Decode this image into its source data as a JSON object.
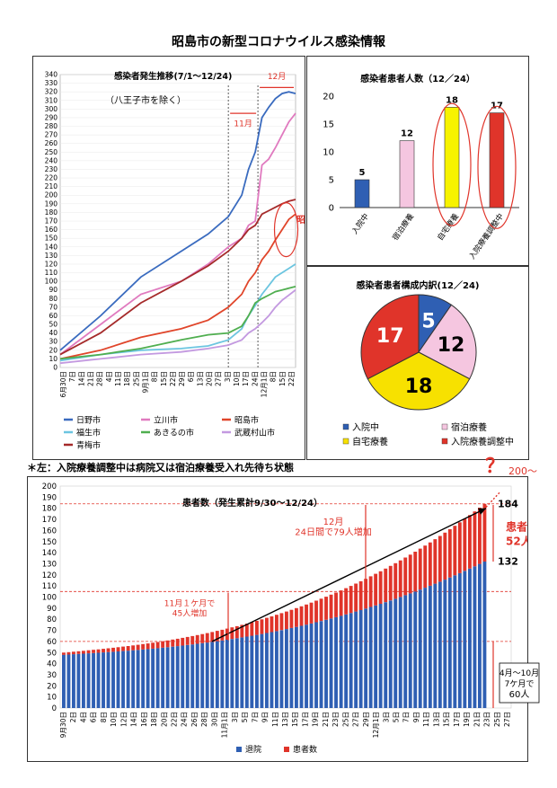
{
  "page": {
    "title": "昭島市の新型コロナウイルス感染情報",
    "note": "＊左：入院療養調整中は病院又は宿泊療養受入れ先待ち状態"
  },
  "chart_data": [
    {
      "id": "line_chart",
      "type": "line",
      "title": "感染者発生推移(7/1～12/24)",
      "subtitle": "（八王子市を除く）",
      "ylim": [
        0,
        340
      ],
      "y_ticks": [
        0,
        10,
        20,
        30,
        40,
        50,
        60,
        70,
        80,
        90,
        100,
        110,
        120,
        130,
        140,
        150,
        160,
        170,
        180,
        190,
        200,
        210,
        220,
        230,
        240,
        250,
        260,
        270,
        280,
        290,
        300,
        310,
        320,
        330,
        340
      ],
      "x_tick_labels": [
        "6月30日",
        "7日",
        "14日",
        "21日",
        "28日",
        "4日",
        "11日",
        "18日",
        "25日",
        "9月1日",
        "8日",
        "15日",
        "22日",
        "29日",
        "6日",
        "13日",
        "20日",
        "27日",
        "3日",
        "10日",
        "17日",
        "24日",
        "12月1日",
        "8日",
        "15日",
        "22日"
      ],
      "annotations": {
        "nov": "11月",
        "dec": "12月",
        "akishima": "昭島市"
      },
      "legend_position": "bottom",
      "series": [
        {
          "name": "日野市",
          "color": "#3a6bbf",
          "x": [
            0,
            30,
            60,
            90,
            110,
            125,
            135,
            140,
            145,
            150,
            155,
            160,
            165,
            170,
            175
          ],
          "y": [
            20,
            60,
            105,
            135,
            155,
            175,
            200,
            230,
            250,
            290,
            302,
            312,
            318,
            320,
            318
          ]
        },
        {
          "name": "立川市",
          "color": "#e07abf",
          "x": [
            0,
            30,
            60,
            90,
            110,
            125,
            135,
            140,
            145,
            150,
            155,
            160,
            165,
            170,
            175
          ],
          "y": [
            15,
            50,
            85,
            100,
            120,
            140,
            150,
            165,
            170,
            235,
            242,
            255,
            270,
            285,
            295
          ]
        },
        {
          "name": "昭島市",
          "color": "#e0452a",
          "x": [
            0,
            30,
            60,
            90,
            110,
            125,
            135,
            140,
            145,
            150,
            155,
            160,
            165,
            170,
            175
          ],
          "y": [
            10,
            20,
            35,
            45,
            55,
            70,
            85,
            100,
            110,
            125,
            135,
            148,
            160,
            172,
            178
          ]
        },
        {
          "name": "福生市",
          "color": "#6cc5e0",
          "x": [
            0,
            30,
            60,
            90,
            110,
            125,
            135,
            140,
            145,
            150,
            155,
            160,
            165,
            170,
            175
          ],
          "y": [
            8,
            15,
            20,
            22,
            25,
            32,
            45,
            60,
            72,
            85,
            95,
            105,
            110,
            115,
            120
          ]
        },
        {
          "name": "あきるの市",
          "color": "#4fae4f",
          "x": [
            0,
            30,
            60,
            90,
            110,
            125,
            135,
            140,
            145,
            150,
            155,
            160,
            165,
            170,
            175
          ],
          "y": [
            10,
            15,
            22,
            32,
            38,
            40,
            48,
            60,
            75,
            80,
            84,
            88,
            90,
            92,
            94
          ]
        },
        {
          "name": "武蔵村山市",
          "color": "#c399e0",
          "x": [
            0,
            30,
            60,
            90,
            110,
            125,
            135,
            140,
            145,
            150,
            155,
            160,
            165,
            170,
            175
          ],
          "y": [
            5,
            10,
            15,
            18,
            22,
            26,
            32,
            40,
            45,
            52,
            60,
            70,
            78,
            84,
            90
          ]
        },
        {
          "name": "青梅市",
          "color": "#a52a2a",
          "x": [
            0,
            30,
            60,
            90,
            110,
            125,
            135,
            140,
            145,
            150,
            155,
            160,
            165,
            170,
            175
          ],
          "y": [
            15,
            40,
            75,
            100,
            118,
            135,
            150,
            160,
            165,
            178,
            182,
            186,
            190,
            193,
            195
          ]
        }
      ]
    },
    {
      "id": "bar_chart",
      "type": "bar",
      "title": "感染者患者人数（12／24）",
      "categories": [
        "入院中",
        "宿泊療養",
        "自宅療養",
        "入院療養調整中"
      ],
      "values": [
        5,
        12,
        18,
        17
      ],
      "colors": [
        "#2f5fb3",
        "#f5c6e0",
        "#f7f300",
        "#e0342a"
      ],
      "ylim": [
        0,
        20
      ],
      "y_ticks": [
        0,
        5,
        10,
        15,
        20
      ]
    },
    {
      "id": "pie_chart",
      "type": "pie",
      "title": "感染者患者構成内訳(12／24)",
      "labels": [
        "入院中",
        "宿泊療養",
        "自宅療養",
        "入院療養調整中"
      ],
      "values": [
        5,
        12,
        18,
        17
      ],
      "colors": [
        "#2f5fb3",
        "#f5c6e0",
        "#f7e100",
        "#e0342a"
      ],
      "legend_position": "bottom"
    },
    {
      "id": "stacked_chart",
      "type": "bar",
      "title": "患者数（発生累計9/30～12/24）",
      "ylim": [
        0,
        200
      ],
      "y_ticks": [
        0,
        10,
        20,
        30,
        40,
        50,
        60,
        70,
        80,
        90,
        100,
        110,
        120,
        130,
        140,
        150,
        160,
        170,
        180,
        190,
        200
      ],
      "x_tick_labels": [
        "9月30日",
        "2日",
        "4日",
        "6日",
        "8日",
        "10日",
        "12日",
        "14日",
        "16日",
        "18日",
        "20日",
        "22日",
        "24日",
        "26日",
        "28日",
        "30日",
        "11月1日",
        "3日",
        "5日",
        "7日",
        "9日",
        "11日",
        "13日",
        "15日",
        "17日",
        "19日",
        "21日",
        "23日",
        "25日",
        "27日",
        "29日",
        "12月1日",
        "3日",
        "5日",
        "7日",
        "9日",
        "11日",
        "13日",
        "15日",
        "17日",
        "19日",
        "21日",
        "23日",
        "25日",
        "27日"
      ],
      "legend": [
        "退院",
        "患者数"
      ],
      "legend_position": "bottom",
      "series": [
        {
          "name": "退院",
          "color": "#2f5fb3",
          "start": 48,
          "end": 132
        },
        {
          "name": "患者数",
          "color": "#e0342a",
          "start": 50,
          "end": 184
        }
      ],
      "annotations": {
        "question": "？",
        "trend_200": "200～",
        "label_184": "184",
        "label_132": "132",
        "patients_line1": "患者",
        "patients_line2": "52人",
        "dec_line1": "12月",
        "dec_line2": "24日間で79人増加",
        "nov_line1": "11月１ケ月で",
        "nov_line2": "45人増加",
        "apr_line1": "4月～10月",
        "apr_line2": "7ケ月で",
        "apr_line3": "60人"
      }
    }
  ]
}
